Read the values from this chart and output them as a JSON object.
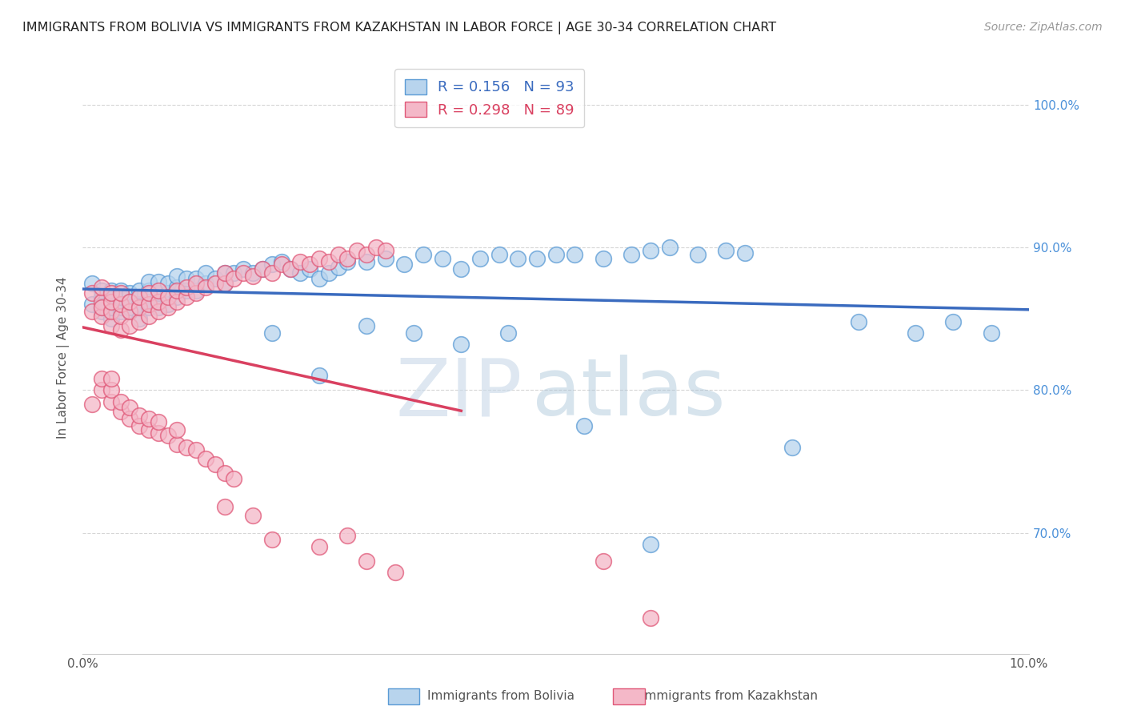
{
  "title": "IMMIGRANTS FROM BOLIVIA VS IMMIGRANTS FROM KAZAKHSTAN IN LABOR FORCE | AGE 30-34 CORRELATION CHART",
  "source": "Source: ZipAtlas.com",
  "ylabel": "In Labor Force | Age 30-34",
  "xlim": [
    0.0,
    0.1
  ],
  "ylim": [
    0.615,
    1.03
  ],
  "xtick_positions": [
    0.0,
    0.02,
    0.04,
    0.06,
    0.08,
    0.1
  ],
  "xtick_labels": [
    "0.0%",
    "",
    "",
    "",
    "",
    "10.0%"
  ],
  "ytick_positions": [
    0.7,
    0.8,
    0.9,
    1.0
  ],
  "ytick_labels": [
    "70.0%",
    "80.0%",
    "90.0%",
    "100.0%"
  ],
  "bolivia_R": 0.156,
  "bolivia_N": 93,
  "kazakhstan_R": 0.298,
  "kazakhstan_N": 89,
  "bolivia_color": "#b8d4ed",
  "kazakhstan_color": "#f4b8c8",
  "bolivia_edge_color": "#5b9bd5",
  "kazakhstan_edge_color": "#e05878",
  "bolivia_line_color": "#3a6bbf",
  "kazakhstan_line_color": "#d94060",
  "watermark_zip": "ZIP",
  "watermark_atlas": "atlas",
  "bolivia_x": [
    0.001,
    0.001,
    0.002,
    0.002,
    0.002,
    0.002,
    0.003,
    0.003,
    0.003,
    0.003,
    0.003,
    0.004,
    0.004,
    0.004,
    0.004,
    0.004,
    0.005,
    0.005,
    0.005,
    0.005,
    0.005,
    0.006,
    0.006,
    0.006,
    0.006,
    0.007,
    0.007,
    0.007,
    0.007,
    0.008,
    0.008,
    0.008,
    0.008,
    0.009,
    0.009,
    0.009,
    0.01,
    0.01,
    0.01,
    0.011,
    0.011,
    0.012,
    0.012,
    0.013,
    0.013,
    0.014,
    0.015,
    0.015,
    0.016,
    0.017,
    0.018,
    0.019,
    0.02,
    0.021,
    0.022,
    0.023,
    0.024,
    0.025,
    0.026,
    0.027,
    0.028,
    0.03,
    0.032,
    0.034,
    0.036,
    0.038,
    0.04,
    0.042,
    0.044,
    0.046,
    0.048,
    0.05,
    0.052,
    0.055,
    0.058,
    0.06,
    0.062,
    0.065,
    0.068,
    0.07,
    0.053,
    0.06,
    0.075,
    0.082,
    0.088,
    0.092,
    0.096,
    0.02,
    0.025,
    0.03,
    0.035,
    0.04,
    0.045
  ],
  "bolivia_y": [
    0.86,
    0.875,
    0.855,
    0.865,
    0.87,
    0.858,
    0.85,
    0.858,
    0.865,
    0.87,
    0.858,
    0.855,
    0.86,
    0.87,
    0.858,
    0.865,
    0.855,
    0.862,
    0.868,
    0.858,
    0.862,
    0.85,
    0.86,
    0.87,
    0.858,
    0.858,
    0.862,
    0.87,
    0.876,
    0.858,
    0.862,
    0.868,
    0.876,
    0.86,
    0.868,
    0.875,
    0.865,
    0.872,
    0.88,
    0.87,
    0.878,
    0.87,
    0.878,
    0.875,
    0.882,
    0.878,
    0.875,
    0.882,
    0.882,
    0.885,
    0.882,
    0.885,
    0.888,
    0.89,
    0.885,
    0.882,
    0.885,
    0.878,
    0.882,
    0.886,
    0.89,
    0.89,
    0.892,
    0.888,
    0.895,
    0.892,
    0.885,
    0.892,
    0.895,
    0.892,
    0.892,
    0.895,
    0.895,
    0.892,
    0.895,
    0.898,
    0.9,
    0.895,
    0.898,
    0.896,
    0.775,
    0.692,
    0.76,
    0.848,
    0.84,
    0.848,
    0.84,
    0.84,
    0.81,
    0.845,
    0.84,
    0.832,
    0.84
  ],
  "kazakhstan_x": [
    0.001,
    0.001,
    0.002,
    0.002,
    0.002,
    0.002,
    0.003,
    0.003,
    0.003,
    0.003,
    0.004,
    0.004,
    0.004,
    0.004,
    0.005,
    0.005,
    0.005,
    0.006,
    0.006,
    0.006,
    0.007,
    0.007,
    0.007,
    0.008,
    0.008,
    0.008,
    0.009,
    0.009,
    0.01,
    0.01,
    0.011,
    0.011,
    0.012,
    0.012,
    0.013,
    0.014,
    0.015,
    0.015,
    0.016,
    0.017,
    0.018,
    0.019,
    0.02,
    0.021,
    0.022,
    0.023,
    0.024,
    0.025,
    0.026,
    0.027,
    0.028,
    0.029,
    0.03,
    0.031,
    0.032,
    0.001,
    0.002,
    0.002,
    0.003,
    0.003,
    0.003,
    0.004,
    0.004,
    0.005,
    0.005,
    0.006,
    0.006,
    0.007,
    0.007,
    0.008,
    0.008,
    0.009,
    0.01,
    0.01,
    0.011,
    0.012,
    0.013,
    0.014,
    0.015,
    0.016,
    0.015,
    0.018,
    0.02,
    0.025,
    0.028,
    0.03,
    0.033,
    0.055,
    0.06
  ],
  "kazakhstan_y": [
    0.855,
    0.868,
    0.852,
    0.862,
    0.872,
    0.858,
    0.845,
    0.855,
    0.862,
    0.868,
    0.842,
    0.852,
    0.86,
    0.868,
    0.845,
    0.855,
    0.862,
    0.848,
    0.858,
    0.865,
    0.852,
    0.86,
    0.868,
    0.855,
    0.862,
    0.87,
    0.858,
    0.865,
    0.862,
    0.87,
    0.865,
    0.872,
    0.868,
    0.875,
    0.872,
    0.875,
    0.875,
    0.882,
    0.878,
    0.882,
    0.88,
    0.885,
    0.882,
    0.888,
    0.885,
    0.89,
    0.888,
    0.892,
    0.89,
    0.895,
    0.892,
    0.898,
    0.895,
    0.9,
    0.898,
    0.79,
    0.8,
    0.808,
    0.792,
    0.8,
    0.808,
    0.785,
    0.792,
    0.78,
    0.788,
    0.775,
    0.782,
    0.772,
    0.78,
    0.77,
    0.778,
    0.768,
    0.762,
    0.772,
    0.76,
    0.758,
    0.752,
    0.748,
    0.742,
    0.738,
    0.718,
    0.712,
    0.695,
    0.69,
    0.698,
    0.68,
    0.672,
    0.68,
    0.64
  ]
}
